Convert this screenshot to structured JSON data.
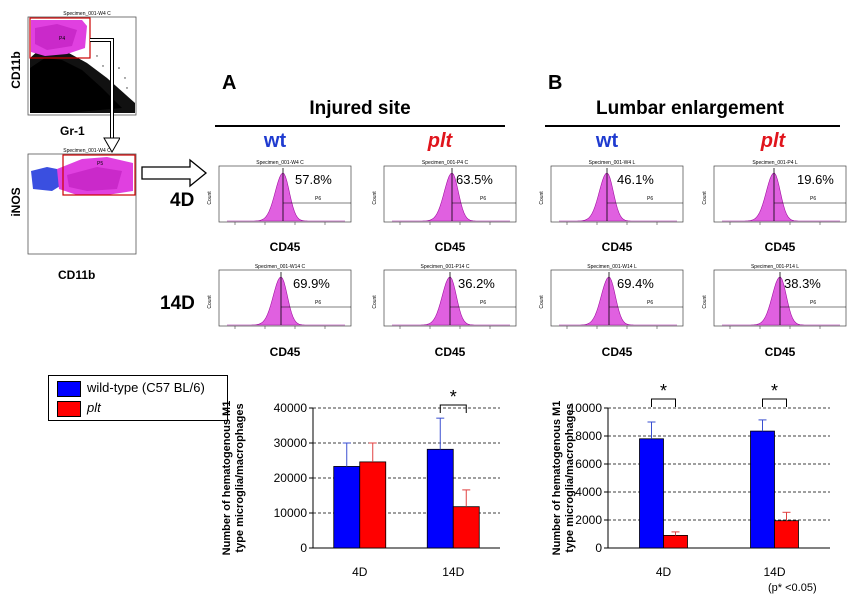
{
  "panels": {
    "a_letter": "A",
    "b_letter": "B",
    "a_title": "Injured site",
    "b_title": "Lumbar enlargement"
  },
  "genotypes": {
    "wt": "wt",
    "plt": "plt"
  },
  "days": {
    "d4": "4D",
    "d14": "14D"
  },
  "gating": {
    "top": {
      "title": "Specimen_001-W4 C",
      "ylabel": "CD11b",
      "xlabel": "Gr-1",
      "gate": "P4"
    },
    "bottom": {
      "title": "Specimen_001-W4 C",
      "ylabel": "iNOS",
      "xlabel": "CD11b",
      "gate": "P5"
    }
  },
  "histograms": {
    "axis_label": "CD45",
    "count_label": "Count",
    "gate": "P6",
    "a_4d_wt": {
      "title": "Specimen_001-W4 C",
      "pct": "57.8%"
    },
    "a_4d_plt": {
      "title": "Specimen_001-P4 C",
      "pct": "63.5%"
    },
    "b_4d_wt": {
      "title": "Specimen_001-W4 L",
      "pct": "46.1%"
    },
    "b_4d_plt": {
      "title": "Specimen_001-P4 L",
      "pct": "19.6%"
    },
    "a_14d_wt": {
      "title": "Specimen_001-W14 C",
      "pct": "69.9%"
    },
    "a_14d_plt": {
      "title": "Specimen_001-P14 C",
      "pct": "36.2%"
    },
    "b_14d_wt": {
      "title": "Specimen_001-W14 L",
      "pct": "69.4%"
    },
    "b_14d_plt": {
      "title": "Specimen_001-P14 L",
      "pct": "38.3%"
    }
  },
  "legend": {
    "wt_label": "wild-type (C57 BL/6)",
    "plt_label": "plt",
    "wt_color": "#0000ff",
    "plt_color": "#ff0000"
  },
  "footnote": "(p* <0.05)",
  "chart_data": [
    {
      "type": "bar",
      "panel": "A",
      "categories": [
        "4D",
        "14D"
      ],
      "series": [
        {
          "name": "wild-type (C57 BL/6)",
          "values": [
            23300,
            28200
          ],
          "errors": [
            6700,
            8900
          ]
        },
        {
          "name": "plt",
          "values": [
            24600,
            11800
          ],
          "errors": [
            5400,
            4800
          ]
        }
      ],
      "ylabel": "Number of hematogenous M1 type microglia/macrophages",
      "ylim": [
        0,
        40000
      ],
      "yticks": [
        "0",
        "10000",
        "20000",
        "30000",
        "40000"
      ],
      "significance": [
        {
          "category": "14D",
          "label": "*"
        }
      ]
    },
    {
      "type": "bar",
      "panel": "B",
      "categories": [
        "4D",
        "14D"
      ],
      "series": [
        {
          "name": "wild-type (C57 BL/6)",
          "values": [
            7800,
            8350
          ],
          "errors": [
            1200,
            800
          ]
        },
        {
          "name": "plt",
          "values": [
            900,
            1950
          ],
          "errors": [
            250,
            600
          ]
        }
      ],
      "ylabel": "Number of hematogenous M1 type microglia/macrophages",
      "ylim": [
        0,
        10000
      ],
      "yticks": [
        "0",
        "2000",
        "4000",
        "6000",
        "8000",
        "10000"
      ],
      "significance": [
        {
          "category": "4D",
          "label": "*"
        },
        {
          "category": "14D",
          "label": "*"
        }
      ]
    }
  ]
}
